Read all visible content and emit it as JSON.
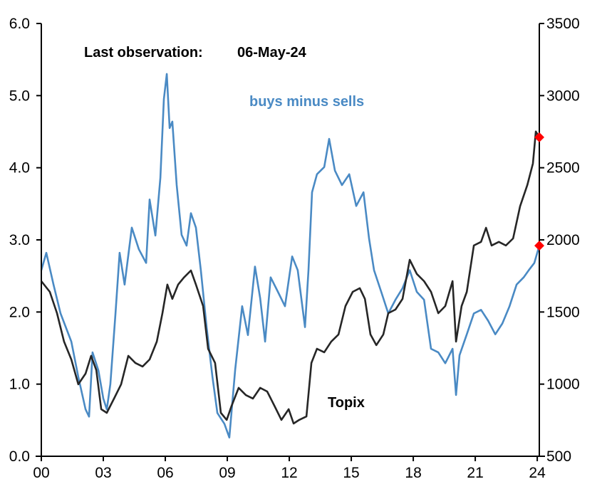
{
  "chart_data": {
    "type": "line",
    "title": "",
    "annotations": {
      "last_observation_label": "Last observation:",
      "last_observation_date": "06-May-24"
    },
    "x_ticks": [
      "00",
      "03",
      "06",
      "09",
      "12",
      "15",
      "18",
      "21",
      "24"
    ],
    "x_tick_values": [
      0,
      3,
      6,
      9,
      12,
      15,
      18,
      21,
      24
    ],
    "x_range": [
      0,
      24.1
    ],
    "left_axis": {
      "range": [
        0,
        6
      ],
      "ticks": [
        "0.0",
        "1.0",
        "2.0",
        "3.0",
        "4.0",
        "5.0",
        "6.0"
      ],
      "tick_values": [
        0,
        1,
        2,
        3,
        4,
        5,
        6
      ]
    },
    "right_axis": {
      "range": [
        500,
        3500
      ],
      "ticks": [
        "500",
        "1000",
        "1500",
        "2000",
        "2500",
        "3000",
        "3500"
      ],
      "tick_values": [
        500,
        1000,
        1500,
        2000,
        2500,
        3000,
        3500
      ]
    },
    "grid": false,
    "series": [
      {
        "name": "buys minus sells",
        "axis": "left",
        "color": "#4a8ac4",
        "x": [
          0.0,
          0.24,
          0.59,
          0.93,
          1.45,
          1.79,
          2.14,
          2.31,
          2.48,
          2.76,
          3.0,
          3.17,
          3.34,
          3.59,
          3.79,
          4.03,
          4.38,
          4.72,
          5.07,
          5.24,
          5.52,
          5.76,
          5.93,
          6.07,
          6.21,
          6.34,
          6.55,
          6.79,
          7.03,
          7.24,
          7.48,
          7.72,
          8.0,
          8.28,
          8.52,
          8.86,
          9.1,
          9.38,
          9.72,
          10.0,
          10.34,
          10.59,
          10.83,
          11.1,
          11.45,
          11.79,
          12.14,
          12.41,
          12.76,
          12.93,
          13.1,
          13.34,
          13.69,
          13.93,
          14.21,
          14.55,
          14.9,
          15.24,
          15.59,
          15.86,
          16.1,
          16.45,
          16.79,
          17.14,
          17.48,
          17.83,
          18.17,
          18.52,
          18.86,
          19.21,
          19.55,
          19.9,
          20.07,
          20.24,
          20.59,
          20.93,
          21.28,
          21.62,
          21.97,
          22.31,
          22.66,
          23.0,
          23.34,
          23.59,
          23.86,
          24.1
        ],
        "y": [
          2.58,
          2.82,
          2.38,
          1.98,
          1.59,
          1.1,
          0.65,
          0.55,
          1.44,
          1.19,
          0.8,
          0.65,
          1.0,
          1.98,
          2.82,
          2.38,
          3.17,
          2.87,
          2.68,
          3.56,
          3.06,
          3.86,
          4.95,
          5.3,
          4.55,
          4.64,
          3.76,
          3.07,
          2.92,
          3.37,
          3.17,
          2.58,
          1.79,
          1.1,
          0.6,
          0.45,
          0.26,
          1.2,
          2.08,
          1.68,
          2.63,
          2.19,
          1.59,
          2.48,
          2.28,
          2.08,
          2.77,
          2.58,
          1.79,
          2.58,
          3.66,
          3.91,
          4.01,
          4.4,
          3.96,
          3.76,
          3.91,
          3.47,
          3.66,
          3.02,
          2.58,
          2.28,
          1.98,
          2.17,
          2.33,
          2.58,
          2.28,
          2.17,
          1.49,
          1.44,
          1.29,
          1.49,
          0.85,
          1.4,
          1.69,
          1.98,
          2.03,
          1.88,
          1.69,
          1.84,
          2.08,
          2.38,
          2.48,
          2.58,
          2.68,
          2.92
        ]
      },
      {
        "name": "Topix",
        "axis": "right",
        "color": "#262626",
        "x": [
          0.0,
          0.41,
          0.76,
          1.1,
          1.45,
          1.79,
          2.14,
          2.41,
          2.66,
          2.9,
          3.17,
          3.52,
          3.86,
          4.21,
          4.55,
          4.9,
          5.24,
          5.59,
          5.86,
          6.1,
          6.34,
          6.62,
          6.9,
          7.24,
          7.48,
          7.83,
          8.07,
          8.41,
          8.69,
          8.97,
          9.21,
          9.55,
          9.9,
          10.24,
          10.59,
          10.93,
          11.28,
          11.62,
          11.97,
          12.21,
          12.48,
          12.83,
          13.07,
          13.34,
          13.69,
          14.03,
          14.38,
          14.72,
          15.07,
          15.41,
          15.66,
          15.93,
          16.21,
          16.55,
          16.79,
          17.14,
          17.48,
          17.83,
          18.17,
          18.52,
          18.86,
          19.21,
          19.55,
          19.9,
          20.07,
          20.34,
          20.59,
          20.93,
          21.28,
          21.52,
          21.79,
          22.14,
          22.48,
          22.83,
          23.17,
          23.52,
          23.79,
          23.93,
          24.1
        ],
        "y": [
          1714,
          1640,
          1492,
          1295,
          1171,
          999,
          1073,
          1196,
          1097,
          826,
          801,
          900,
          999,
          1196,
          1147,
          1122,
          1171,
          1295,
          1492,
          1690,
          1591,
          1690,
          1739,
          1788,
          1690,
          1541,
          1245,
          1147,
          801,
          752,
          850,
          974,
          924,
          900,
          974,
          949,
          850,
          752,
          826,
          727,
          752,
          776,
          1147,
          1245,
          1221,
          1295,
          1344,
          1541,
          1640,
          1665,
          1591,
          1344,
          1270,
          1344,
          1492,
          1517,
          1591,
          1862,
          1764,
          1714,
          1640,
          1492,
          1541,
          1714,
          1295,
          1541,
          1640,
          1961,
          1986,
          2084,
          1961,
          1986,
          1961,
          2010,
          2233,
          2381,
          2529,
          2751,
          2711
        ]
      }
    ],
    "last_points": [
      {
        "series": "buys minus sells",
        "value": 2.92,
        "color": "#ff0000",
        "marker": "diamond"
      },
      {
        "series": "Topix",
        "value": 2711,
        "color": "#ff0000",
        "marker": "diamond"
      }
    ]
  }
}
